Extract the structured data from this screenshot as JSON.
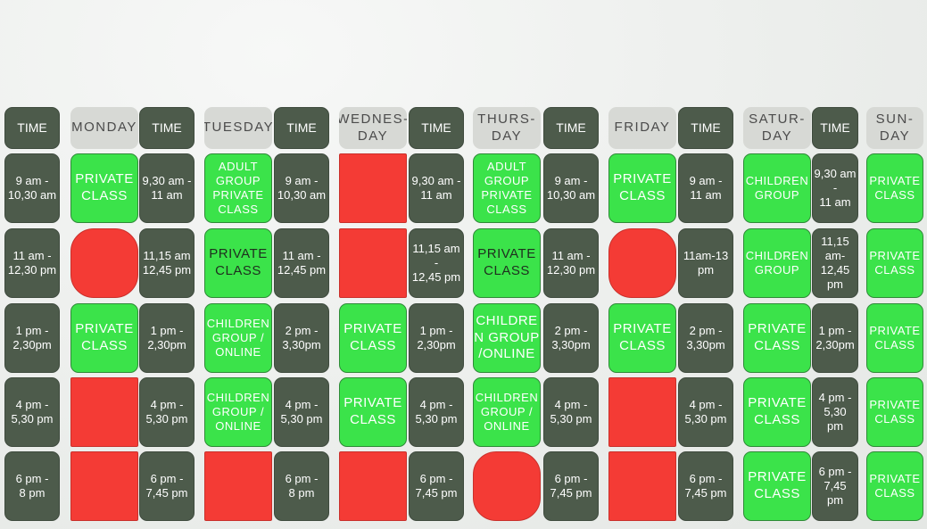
{
  "columns": [
    {
      "type": "time",
      "header": "TIME",
      "cells": [
        "9 am -\n10,30 am",
        "11 am -\n12,30 pm",
        "1 pm -\n2,30pm",
        "4 pm -\n5,30 pm",
        "6 pm -\n8 pm"
      ]
    },
    {
      "type": "day",
      "header": "MONDAY",
      "cells": [
        {
          "status": "private",
          "label": "PRIVATE\nCLASS"
        },
        {
          "status": "booked",
          "shape": "round"
        },
        {
          "status": "private",
          "label": "PRIVATE\nCLASS"
        },
        {
          "status": "booked",
          "shape": "square"
        },
        {
          "status": "booked",
          "shape": "square"
        }
      ]
    },
    {
      "type": "time",
      "header": "TIME",
      "cells": [
        "9,30 am -\n11 am",
        "11,15 am\n12,45 pm",
        "1 pm -\n2,30pm",
        "4 pm -\n5,30 pm",
        "6 pm -\n7,45 pm"
      ]
    },
    {
      "type": "day",
      "header": "TUESDAY",
      "cells": [
        {
          "status": "private",
          "label": "ADULT\nGROUP\nPRIVATE\nCLASS",
          "small": true
        },
        {
          "status": "private",
          "label": "PRIVATE\nCLASS",
          "dark": true
        },
        {
          "status": "private",
          "label": "CHILDREN\nGROUP /\nONLINE",
          "small": true
        },
        {
          "status": "private",
          "label": "CHILDREN\nGROUP /\nONLINE",
          "small": true
        },
        {
          "status": "booked",
          "shape": "square"
        }
      ]
    },
    {
      "type": "time",
      "header": "TIME",
      "cells": [
        "9 am -\n10,30 am",
        "11 am -\n12,45 pm",
        "2 pm -\n3,30pm",
        "4 pm -\n5,30 pm",
        "6 pm -\n8 pm"
      ]
    },
    {
      "type": "day",
      "header": "WEDNES-\nDAY",
      "cells": [
        {
          "status": "booked",
          "shape": "square"
        },
        {
          "status": "booked",
          "shape": "square"
        },
        {
          "status": "private",
          "label": "PRIVATE\nCLASS"
        },
        {
          "status": "private",
          "label": "PRIVATE\nCLASS"
        },
        {
          "status": "booked",
          "shape": "square"
        }
      ]
    },
    {
      "type": "time",
      "header": "TIME",
      "cells": [
        "9,30 am -\n11 am",
        "11,15 am -\n12,45 pm",
        "1 pm -\n2,30pm",
        "4 pm -\n5,30 pm",
        "6 pm -\n7,45 pm"
      ]
    },
    {
      "type": "day",
      "header": "THURS-\nDAY",
      "cells": [
        {
          "status": "private",
          "label": "ADULT\nGROUP\nPRIVATE\nCLASS",
          "small": true
        },
        {
          "status": "private",
          "label": "PRIVATE\nCLASS",
          "dark": true
        },
        {
          "status": "private",
          "label": "CHILDRE\nN GROUP\n/ONLINE"
        },
        {
          "status": "private",
          "label": "CHILDREN\nGROUP /\nONLINE",
          "small": true
        },
        {
          "status": "booked",
          "shape": "round"
        }
      ]
    },
    {
      "type": "time",
      "header": "TIME",
      "cells": [
        "9 am -\n10,30 am",
        "11 am -\n12,30 pm",
        "2 pm -\n3,30pm",
        "4 pm -\n5,30 pm",
        "6 pm -\n7,45 pm"
      ]
    },
    {
      "type": "day",
      "header": "FRIDAY",
      "cells": [
        {
          "status": "private",
          "label": "PRIVATE\nCLASS"
        },
        {
          "status": "booked",
          "shape": "round"
        },
        {
          "status": "private",
          "label": "PRIVATE\nCLASS"
        },
        {
          "status": "booked",
          "shape": "square"
        },
        {
          "status": "booked",
          "shape": "square"
        }
      ]
    },
    {
      "type": "time",
      "header": "TIME",
      "cells": [
        "9 am -\n11 am",
        "11am-13\npm",
        "2 pm -\n3,30pm",
        "4 pm -\n5,30 pm",
        "6 pm -\n7,45 pm"
      ]
    },
    {
      "type": "day",
      "header": "SATUR-\nDAY",
      "cells": [
        {
          "status": "private",
          "label": "CHILDREN\nGROUP",
          "small": true
        },
        {
          "status": "private",
          "label": "CHILDREN\nGROUP",
          "small": true
        },
        {
          "status": "private",
          "label": "PRIVATE\nCLASS"
        },
        {
          "status": "private",
          "label": "PRIVATE\nCLASS"
        },
        {
          "status": "private",
          "label": "PRIVATE\nCLASS"
        }
      ]
    },
    {
      "type": "time",
      "header": "TIME",
      "cells": [
        "9,30 am\n-\n11 am",
        "11,15\nam-\n12,45\npm",
        "1 pm -\n2,30pm",
        "4 pm -\n5,30\npm",
        "6 pm -\n7,45\npm"
      ]
    },
    {
      "type": "day",
      "header": "SUN-\nDAY",
      "cells": [
        {
          "status": "private",
          "label": "PRIVATE\nCLASS",
          "small": true
        },
        {
          "status": "private",
          "label": "PRIVATE\nCLASS",
          "small": true
        },
        {
          "status": "private",
          "label": "PRIVATE\nCLASS",
          "small": true
        },
        {
          "status": "private",
          "label": "PRIVATE\nCLASS",
          "small": true
        },
        {
          "status": "private",
          "label": "PRIVATE\nCLASS",
          "small": true
        }
      ]
    }
  ],
  "colors": {
    "time_cell": "#4d5b4b",
    "day_header": "#d7d9d5",
    "private_class": "#3be34a",
    "booked": "#f43b35"
  }
}
